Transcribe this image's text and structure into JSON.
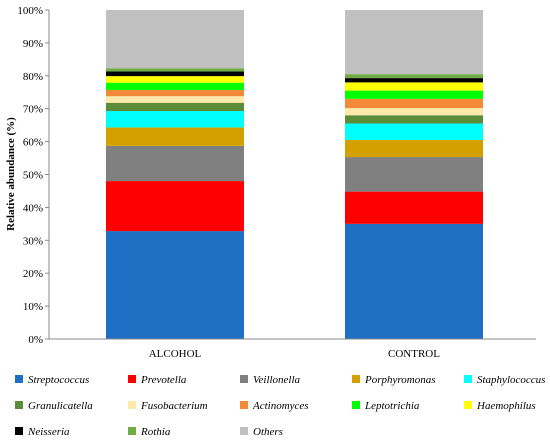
{
  "chart_data": {
    "type": "bar",
    "stacked": true,
    "ylabel": "Relative abundance (%)",
    "xlabel": "",
    "ylim": [
      0,
      100
    ],
    "yticks": [
      "0%",
      "10%",
      "20%",
      "30%",
      "40%",
      "50%",
      "60%",
      "70%",
      "80%",
      "90%",
      "100%"
    ],
    "grid": false,
    "legend_position": "bottom",
    "categories": [
      "ALCOHOL",
      "CONTROL"
    ],
    "series": [
      {
        "name": "Streptococcus",
        "color": "#1f6fc5",
        "values": [
          32.8,
          35.0
        ]
      },
      {
        "name": "Prevotella",
        "color": "#ff0000",
        "values": [
          15.2,
          9.8
        ]
      },
      {
        "name": "Veillonella",
        "color": "#808080",
        "values": [
          10.7,
          10.5
        ]
      },
      {
        "name": "Porphyromonas",
        "color": "#d4a000",
        "values": [
          5.6,
          5.2
        ]
      },
      {
        "name": "Staphylococcus",
        "color": "#00ffff",
        "values": [
          5.0,
          5.0
        ]
      },
      {
        "name": "Granulicatella",
        "color": "#5b8c3a",
        "values": [
          2.5,
          2.5
        ]
      },
      {
        "name": "Fusobacterium",
        "color": "#fde9a9",
        "values": [
          2.0,
          2.2
        ]
      },
      {
        "name": "Actinomyces",
        "color": "#f28a3a",
        "values": [
          1.9,
          2.8
        ]
      },
      {
        "name": "Leptotrichia",
        "color": "#00ff00",
        "values": [
          2.2,
          2.5
        ]
      },
      {
        "name": "Haemophilus",
        "color": "#ffff00",
        "values": [
          2.0,
          2.5
        ]
      },
      {
        "name": "Neisseria",
        "color": "#000000",
        "values": [
          1.4,
          1.3
        ]
      },
      {
        "name": "Rothia",
        "color": "#70ad47",
        "values": [
          1.0,
          1.2
        ]
      },
      {
        "name": "Others",
        "color": "#c0c0c0",
        "values": [
          17.7,
          19.5
        ]
      }
    ]
  }
}
